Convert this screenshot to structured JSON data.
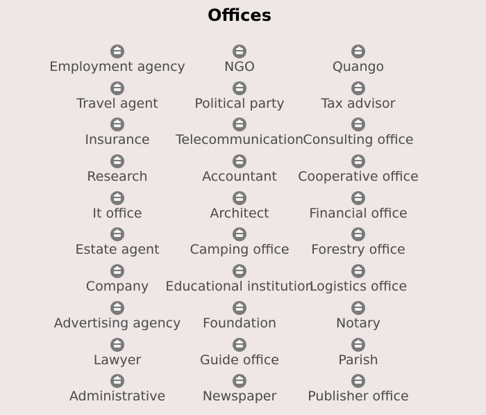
{
  "header": {
    "title": "Offices"
  },
  "icon_color": "#7a7a7a",
  "offices": [
    {
      "label": "Employment agency",
      "icon": "employment-agency-icon"
    },
    {
      "label": "NGO",
      "icon": "ngo-icon"
    },
    {
      "label": "Quango",
      "icon": "quango-icon"
    },
    {
      "label": "Travel agent",
      "icon": "travel-agent-icon"
    },
    {
      "label": "Political party",
      "icon": "political-party-icon"
    },
    {
      "label": "Tax advisor",
      "icon": "tax-advisor-icon"
    },
    {
      "label": "Insurance",
      "icon": "insurance-icon"
    },
    {
      "label": "Telecommunication",
      "icon": "telecommunication-icon"
    },
    {
      "label": "Consulting office",
      "icon": "consulting-office-icon"
    },
    {
      "label": "Research",
      "icon": "research-icon"
    },
    {
      "label": "Accountant",
      "icon": "accountant-icon"
    },
    {
      "label": "Cooperative office",
      "icon": "cooperative-office-icon"
    },
    {
      "label": "It office",
      "icon": "it-office-icon"
    },
    {
      "label": "Architect",
      "icon": "architect-icon"
    },
    {
      "label": "Financial office",
      "icon": "financial-office-icon"
    },
    {
      "label": "Estate agent",
      "icon": "estate-agent-icon"
    },
    {
      "label": "Camping office",
      "icon": "camping-office-icon"
    },
    {
      "label": "Forestry office",
      "icon": "forestry-office-icon"
    },
    {
      "label": "Company",
      "icon": "company-icon"
    },
    {
      "label": "Educational institution",
      "icon": "educational-institution-icon"
    },
    {
      "label": "Logistics office",
      "icon": "logistics-office-icon"
    },
    {
      "label": "Advertising agency",
      "icon": "advertising-agency-icon"
    },
    {
      "label": "Foundation",
      "icon": "foundation-icon"
    },
    {
      "label": "Notary",
      "icon": "notary-icon"
    },
    {
      "label": "Lawyer",
      "icon": "lawyer-icon"
    },
    {
      "label": "Guide office",
      "icon": "guide-office-icon"
    },
    {
      "label": "Parish",
      "icon": "parish-icon"
    },
    {
      "label": "Administrative",
      "icon": "administrative-icon"
    },
    {
      "label": "Newspaper",
      "icon": "newspaper-icon"
    },
    {
      "label": "Publisher office",
      "icon": "publisher-office-icon"
    }
  ]
}
